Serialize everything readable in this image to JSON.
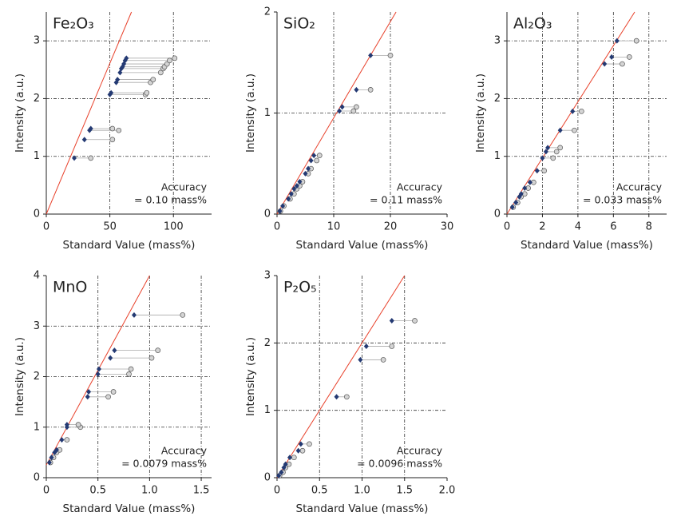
{
  "chart_data": [
    {
      "type": "scatter",
      "title": "Fe₂O₃",
      "x_label": "Standard Value (mass%)",
      "y_label": "Intensity (a.u.)",
      "annotations": [
        "Accuracy",
        "= 0.10 mass%"
      ],
      "xlim": [
        0,
        130
      ],
      "ylim": [
        0,
        3.5
      ],
      "xticks": [
        0,
        50,
        100
      ],
      "yticks": [
        0,
        1,
        2,
        3
      ],
      "grid": true,
      "series": [
        {
          "color": "#243a73",
          "marker": "diamond",
          "x": [
            22,
            30,
            34,
            35,
            50,
            51,
            55,
            56,
            58,
            59,
            60,
            61,
            62,
            63
          ],
          "values": [
            0.97,
            1.29,
            1.45,
            1.48,
            2.07,
            2.1,
            2.28,
            2.33,
            2.45,
            2.52,
            2.55,
            2.6,
            2.66,
            2.7
          ]
        },
        {
          "color": "#d4d4d4",
          "marker": "circle",
          "x": [
            35,
            52,
            57,
            52,
            78,
            79,
            82,
            84,
            90,
            92,
            93,
            95,
            97,
            101
          ],
          "values": [
            0.97,
            1.29,
            1.45,
            1.48,
            2.07,
            2.1,
            2.28,
            2.33,
            2.45,
            2.52,
            2.55,
            2.6,
            2.66,
            2.7
          ]
        }
      ],
      "fit_line": {
        "color": "#e8402a",
        "x": [
          0,
          67
        ],
        "y": [
          0,
          3.5
        ]
      }
    },
    {
      "type": "scatter",
      "title": "SiO₂",
      "x_label": "Standard Value (mass%)",
      "y_label": "Intensity (a.u.)",
      "annotations": [
        "Accuracy",
        "= 0.11 mass%"
      ],
      "xlim": [
        0,
        30
      ],
      "ylim": [
        0,
        2
      ],
      "xticks": [
        0,
        10,
        20,
        30
      ],
      "yticks": [
        0,
        1,
        2
      ],
      "grid": true,
      "series": [
        {
          "color": "#243a73",
          "marker": "diamond",
          "x": [
            0.5,
            1,
            2,
            2.5,
            3,
            3.5,
            4,
            5,
            5.5,
            6,
            6.5,
            11,
            11.5,
            14,
            16.5
          ],
          "values": [
            0.03,
            0.08,
            0.15,
            0.2,
            0.25,
            0.28,
            0.32,
            0.4,
            0.45,
            0.53,
            0.58,
            1.02,
            1.06,
            1.23,
            1.57
          ]
        },
        {
          "color": "#d4d4d4",
          "marker": "circle",
          "x": [
            0.6,
            1.2,
            2.3,
            3,
            3.5,
            4,
            4.5,
            5.5,
            6,
            7,
            7.5,
            13.5,
            14,
            16.5,
            20
          ],
          "values": [
            0.03,
            0.08,
            0.15,
            0.2,
            0.25,
            0.28,
            0.32,
            0.4,
            0.45,
            0.53,
            0.58,
            1.02,
            1.06,
            1.23,
            1.57
          ]
        }
      ],
      "fit_line": {
        "color": "#e8402a",
        "x": [
          0,
          21
        ],
        "y": [
          0,
          2
        ]
      }
    },
    {
      "type": "scatter",
      "title": "Al₂O₃",
      "x_label": "Standard Value (mass%)",
      "y_label": "Intensity (a.u.)",
      "annotations": [
        "Accuracy",
        "= 0.033 mass%"
      ],
      "xlim": [
        0,
        9
      ],
      "ylim": [
        0,
        3.5
      ],
      "xticks": [
        0,
        2,
        4,
        6,
        8
      ],
      "yticks": [
        0,
        1,
        2,
        3
      ],
      "grid": true,
      "series": [
        {
          "color": "#243a73",
          "marker": "diamond",
          "x": [
            0.3,
            0.5,
            0.7,
            0.8,
            1,
            1.3,
            1.7,
            2,
            2.2,
            2.3,
            3,
            3.7,
            5.5,
            5.9,
            6.2
          ],
          "values": [
            0.12,
            0.2,
            0.3,
            0.35,
            0.45,
            0.55,
            0.75,
            0.97,
            1.08,
            1.15,
            1.45,
            1.78,
            2.6,
            2.72,
            3.0
          ]
        },
        {
          "color": "#d4d4d4",
          "marker": "circle",
          "x": [
            0.35,
            0.6,
            0.8,
            1,
            1.2,
            1.5,
            2.1,
            2.6,
            2.8,
            3,
            3.8,
            4.2,
            6.5,
            6.9,
            7.3
          ],
          "values": [
            0.12,
            0.2,
            0.3,
            0.35,
            0.45,
            0.55,
            0.75,
            0.97,
            1.08,
            1.15,
            1.45,
            1.78,
            2.6,
            2.72,
            3.0
          ]
        }
      ],
      "fit_line": {
        "color": "#e8402a",
        "x": [
          0,
          7.2
        ],
        "y": [
          0,
          3.5
        ]
      }
    },
    {
      "type": "scatter",
      "title": "MnO",
      "x_label": "Standard Value (mass%)",
      "y_label": "Intensity (a.u.)",
      "annotations": [
        "Accuracy",
        "= 0.0079 mass%"
      ],
      "xlim": [
        0,
        1.6
      ],
      "ylim": [
        0,
        4
      ],
      "xticks": [
        0,
        0.5,
        {
          "value": 1,
          "label": "1.0"
        },
        1.5
      ],
      "yticks": [
        0,
        1,
        2,
        3,
        4
      ],
      "grid": true,
      "series": [
        {
          "color": "#243a73",
          "marker": "diamond",
          "x": [
            0.03,
            0.05,
            0.08,
            0.1,
            0.15,
            0.2,
            0.2,
            0.4,
            0.41,
            0.5,
            0.51,
            0.62,
            0.66,
            0.85
          ],
          "values": [
            0.3,
            0.4,
            0.5,
            0.55,
            0.75,
            1.0,
            1.05,
            1.6,
            1.7,
            2.05,
            2.15,
            2.37,
            2.52,
            3.22
          ]
        },
        {
          "color": "#d4d4d4",
          "marker": "circle",
          "x": [
            0.04,
            0.07,
            0.1,
            0.13,
            0.2,
            0.33,
            0.31,
            0.6,
            0.65,
            0.8,
            0.82,
            1.02,
            1.08,
            1.32
          ],
          "values": [
            0.3,
            0.4,
            0.5,
            0.55,
            0.75,
            1.0,
            1.05,
            1.6,
            1.7,
            2.05,
            2.15,
            2.37,
            2.52,
            3.22
          ]
        }
      ],
      "fit_line": {
        "color": "#e8402a",
        "x": [
          0,
          1.0
        ],
        "y": [
          0.25,
          4
        ]
      }
    },
    {
      "type": "scatter",
      "title": "P₂O₅",
      "x_label": "Standard Value (mass%)",
      "y_label": "Intensity (a.u.)",
      "annotations": [
        "Accuracy",
        "= 0.0096 mass%"
      ],
      "xlim": [
        0,
        2
      ],
      "ylim": [
        0,
        3
      ],
      "xticks": [
        0,
        0.5,
        {
          "value": 1,
          "label": "1.0"
        },
        1.5,
        {
          "value": 2,
          "label": "2.0"
        }
      ],
      "yticks": [
        0,
        1,
        2,
        3
      ],
      "grid": true,
      "series": [
        {
          "color": "#243a73",
          "marker": "diamond",
          "x": [
            0.02,
            0.05,
            0.08,
            0.1,
            0.15,
            0.25,
            0.28,
            0.7,
            0.98,
            1.05,
            1.35
          ],
          "values": [
            0.03,
            0.08,
            0.15,
            0.2,
            0.3,
            0.4,
            0.5,
            1.2,
            1.75,
            1.95,
            2.33
          ]
        },
        {
          "color": "#d4d4d4",
          "marker": "circle",
          "x": [
            0.03,
            0.07,
            0.1,
            0.14,
            0.2,
            0.3,
            0.38,
            0.82,
            1.25,
            1.35,
            1.62
          ],
          "values": [
            0.03,
            0.08,
            0.15,
            0.2,
            0.3,
            0.4,
            0.5,
            1.2,
            1.75,
            1.95,
            2.33
          ]
        }
      ],
      "fit_line": {
        "color": "#e8402a",
        "x": [
          0,
          1.5
        ],
        "y": [
          0,
          3
        ]
      }
    }
  ]
}
